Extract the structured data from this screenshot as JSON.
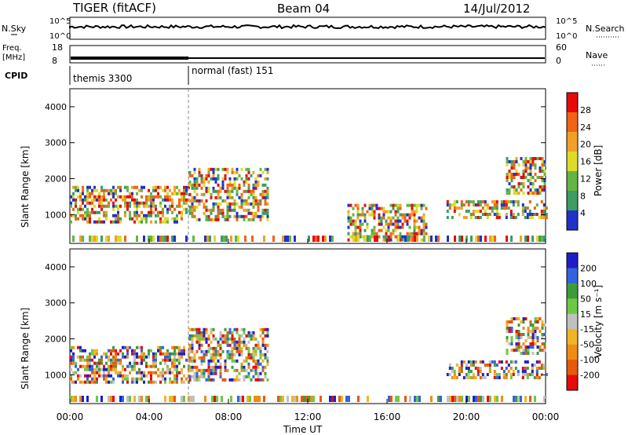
{
  "header": {
    "title": "TIGER (fitACF)",
    "beam": "Beam 04",
    "date": "14/Jul/2012"
  },
  "params": {
    "nsky_label": "N.Sky",
    "nsky_ticks": [
      "10^5",
      "10^0"
    ],
    "nsearch_label": "N.Search",
    "nsearch_ticks": [
      "10^5",
      "10^0"
    ],
    "freq_label": "Freq.",
    "freq_unit": "[MHz]",
    "freq_ticks": [
      "18",
      "8"
    ],
    "nave_label": "Nave",
    "nave_ticks": [
      "60",
      "0"
    ],
    "cpid_label": "CPID",
    "modes": [
      {
        "label": "themis 3300",
        "start_hour": 0,
        "end_hour": 6
      },
      {
        "label": "normal (fast) 151",
        "start_hour": 6,
        "end_hour": 24
      }
    ]
  },
  "chart_data": [
    {
      "type": "heatmap",
      "name": "power-panel",
      "xlabel": "",
      "ylabel": "Slant Range [km]",
      "xlim": [
        0,
        24
      ],
      "ylim": [
        200,
        4500
      ],
      "yticks": [
        "1000",
        "2000",
        "3000",
        "4000"
      ],
      "colorbar_label": "Power [dB]",
      "colorbar_ticks": [
        "4",
        "8",
        "12",
        "16",
        "20",
        "24",
        "28"
      ],
      "colorbar_range": [
        0,
        30
      ],
      "colors": [
        "#1f32c8",
        "#3c9c64",
        "#64b446",
        "#dcdc28",
        "#f0a028",
        "#f06414",
        "#e60a0a"
      ],
      "echo_regions": [
        {
          "x": [
            0,
            6
          ],
          "y": [
            800,
            1800
          ],
          "level": "high"
        },
        {
          "x": [
            6,
            10
          ],
          "y": [
            900,
            2300
          ],
          "level": "high"
        },
        {
          "x": [
            19,
            24
          ],
          "y": [
            900,
            1400
          ],
          "level": "high"
        },
        {
          "x": [
            22,
            24
          ],
          "y": [
            1600,
            2600
          ],
          "level": "high"
        },
        {
          "x": [
            14,
            18
          ],
          "y": [
            300,
            1300
          ],
          "level": "low"
        }
      ]
    },
    {
      "type": "heatmap",
      "name": "velocity-panel",
      "xlabel": "Time UT",
      "ylabel": "Slant Range [km]",
      "xlim": [
        0,
        24
      ],
      "ylim": [
        200,
        4500
      ],
      "xticks": [
        "00:00",
        "04:00",
        "08:00",
        "12:00",
        "16:00",
        "20:00",
        "00:00"
      ],
      "yticks": [
        "1000",
        "2000",
        "3000",
        "4000"
      ],
      "colorbar_label": "Velocity [m s⁻¹]",
      "colorbar_ticks": [
        "200",
        "100",
        "50",
        "15",
        "-15",
        "-50",
        "-100",
        "-200"
      ],
      "colorbar_range": [
        -250,
        250
      ],
      "colors": [
        "#1e1ec8",
        "#3264dc",
        "#3c9c3c",
        "#6ec846",
        "#c0c0c0",
        "#f0b428",
        "#f08c14",
        "#e65a0a",
        "#e60a0a"
      ],
      "echo_regions": [
        {
          "x": [
            0,
            6
          ],
          "y": [
            800,
            1800
          ],
          "level": "ground"
        },
        {
          "x": [
            6,
            10
          ],
          "y": [
            900,
            2300
          ],
          "level": "mixed"
        },
        {
          "x": [
            19,
            24
          ],
          "y": [
            900,
            1400
          ],
          "level": "negative"
        },
        {
          "x": [
            22,
            24
          ],
          "y": [
            1600,
            2600
          ],
          "level": "strong-negative"
        }
      ]
    }
  ]
}
